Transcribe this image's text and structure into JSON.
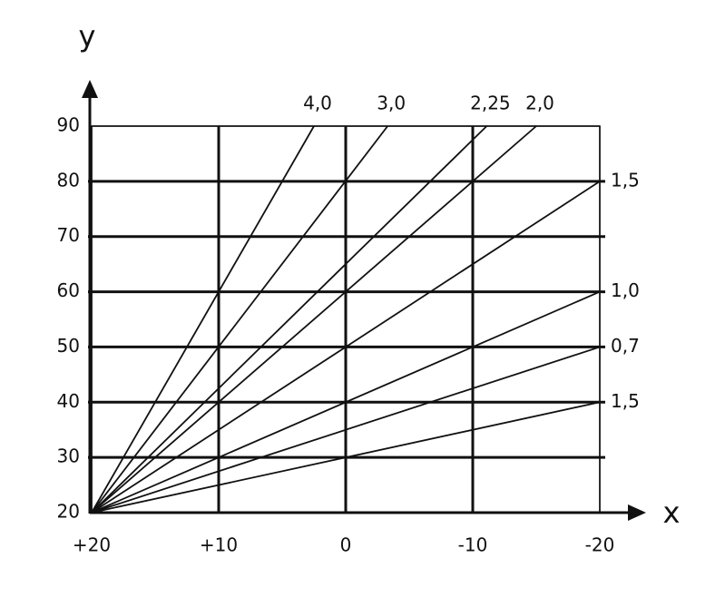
{
  "chart_data": {
    "type": "line",
    "x_label": "x",
    "y_label": "y",
    "xlim": [
      20,
      -20
    ],
    "xticks": [
      {
        "value": 20,
        "label": "+20"
      },
      {
        "value": 10,
        "label": "+10"
      },
      0,
      -10,
      -20
    ],
    "ylim": [
      20,
      90
    ],
    "yticks": [
      20,
      30,
      40,
      50,
      60,
      70,
      80,
      90
    ],
    "grid": true,
    "series": [
      {
        "name": "4,0",
        "color": "#111111",
        "x": [
          20,
          2.5
        ],
        "values": [
          20,
          90
        ]
      },
      {
        "name": "3,0",
        "color": "#111111",
        "x": [
          20,
          -3.3
        ],
        "values": [
          20,
          90
        ]
      },
      {
        "name": "2,25",
        "color": "#111111",
        "x": [
          20,
          -11.1
        ],
        "values": [
          20,
          90
        ]
      },
      {
        "name": "2,0",
        "color": "#111111",
        "x": [
          20,
          -15
        ],
        "values": [
          20,
          90
        ]
      },
      {
        "name": "1,5",
        "color": "#111111",
        "x": [
          20,
          -20
        ],
        "values": [
          20,
          80
        ]
      },
      {
        "name": "1,0",
        "color": "#111111",
        "x": [
          20,
          -20
        ],
        "values": [
          20,
          60
        ]
      },
      {
        "name": "0,7",
        "color": "#111111",
        "x": [
          20,
          -20
        ],
        "values": [
          20,
          50
        ]
      },
      {
        "name": "1,5",
        "color": "#111111",
        "x": [
          20,
          -20
        ],
        "values": [
          20,
          40
        ]
      }
    ]
  }
}
